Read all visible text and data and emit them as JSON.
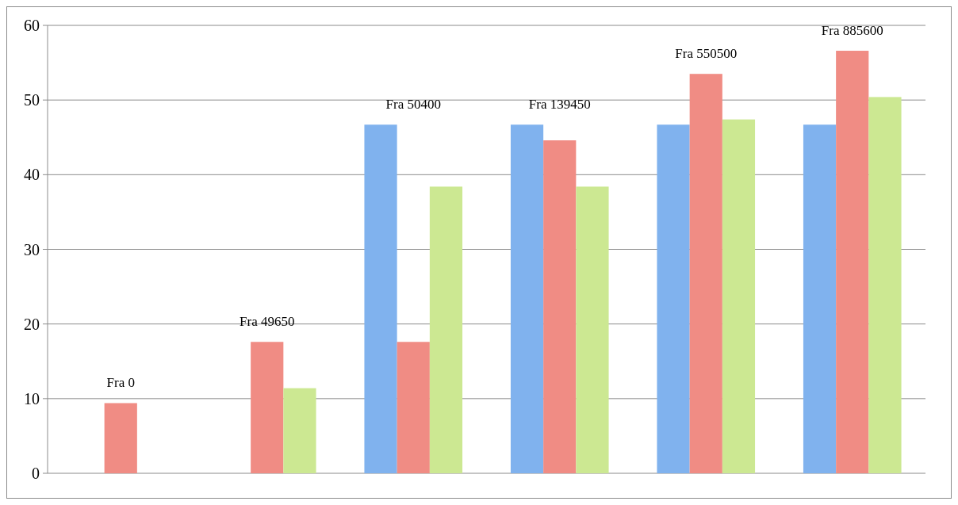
{
  "chart_data": {
    "type": "bar",
    "categories": [
      "Fra 0",
      "Fra 49650",
      "Fra 50400",
      "Fra 139450",
      "Fra 550500",
      "Fra 885600"
    ],
    "series": [
      {
        "color": "#80b2ee",
        "values": [
          null,
          null,
          46.7,
          46.7,
          46.7,
          46.7
        ]
      },
      {
        "color": "#f08c84",
        "values": [
          9.4,
          17.6,
          17.6,
          44.6,
          53.5,
          56.6
        ]
      },
      {
        "color": "#cce892",
        "values": [
          null,
          11.4,
          38.4,
          38.4,
          47.4,
          50.4
        ]
      }
    ],
    "ylim": [
      0,
      60
    ],
    "yticks": [
      0,
      10,
      20,
      30,
      40,
      50,
      60
    ],
    "grid": "y"
  }
}
